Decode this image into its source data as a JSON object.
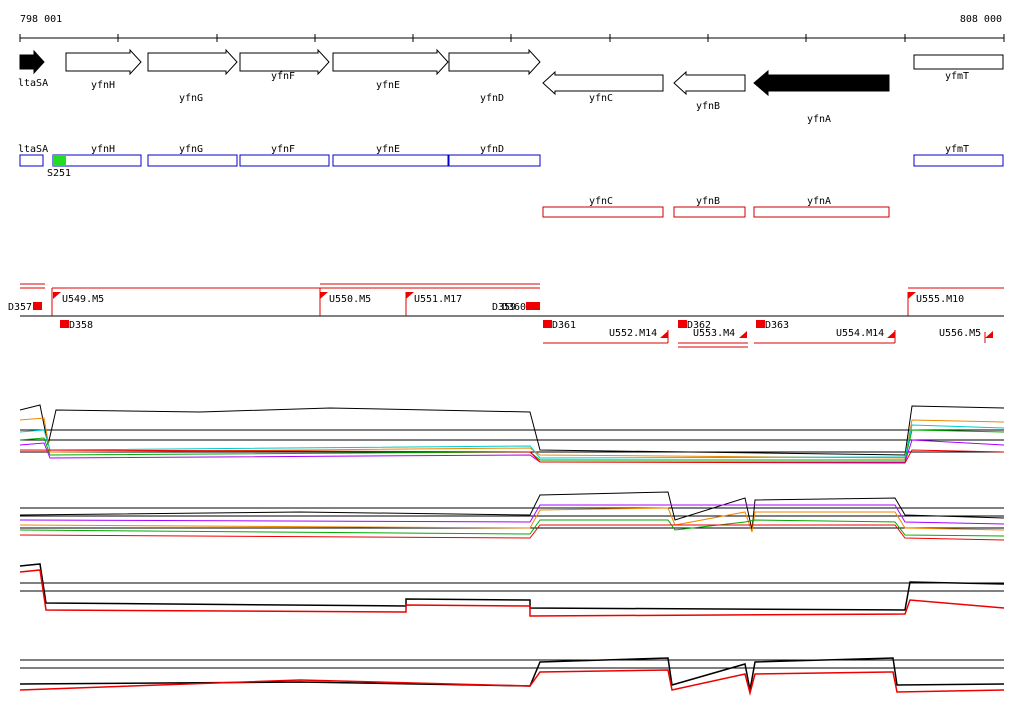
{
  "ruler": {
    "start": "798 001",
    "end": "808 000"
  },
  "genes": [
    "ltaSA",
    "yfnH",
    "yfnG",
    "yfnF",
    "yfnE",
    "yfnD",
    "yfnC",
    "yfnB",
    "yfnA",
    "yfmT"
  ],
  "annotated_genes": [
    "ltaSA",
    "yfnH",
    "yfnG",
    "yfnF",
    "yfnE",
    "yfnD",
    "yfmT"
  ],
  "annotated_feature": "S251",
  "reverse_genes": [
    "yfnC",
    "yfnB",
    "yfnA"
  ],
  "segments": [
    "D357",
    "U549.M5",
    "D358",
    "U550.M5",
    "U551.M17",
    "D359",
    "D360",
    "D361",
    "U552.M14",
    "D362",
    "U553.M4",
    "D363",
    "U554.M14",
    "U555.M10",
    "U556.M5"
  ]
}
